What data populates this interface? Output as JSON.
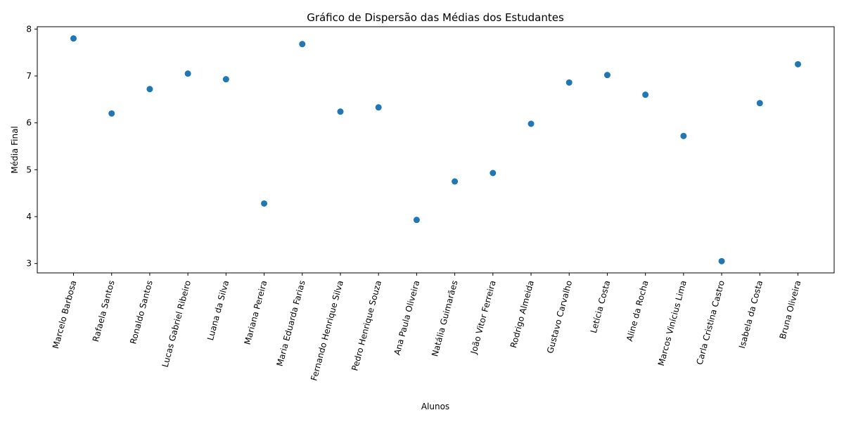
{
  "chart_data": {
    "type": "scatter",
    "title": "Gráfico de Dispersão das Médias dos Estudantes",
    "xlabel": "Alunos",
    "ylabel": "Média Final",
    "ylim": [
      2.8,
      8.05
    ],
    "yticks": [
      "3",
      "4",
      "5",
      "6",
      "7",
      "8"
    ],
    "grid": false,
    "marker_color": "#1f77b4",
    "categories": [
      "Marcelo Barbosa",
      "Rafaela Santos",
      "Ronaldo Santos",
      "Lucas Gabriel Ribeiro",
      "Luana da Silva",
      "Mariana Pereira",
      "Maria Eduarda Farias",
      "Fernando Henrique Silva",
      "Pedro Henrique Souza",
      "Ana Paula Oliveira",
      "Natália Guimarães",
      "João Vitor Ferreira",
      "Rodrigo Almeida",
      "Gustavo Carvalho",
      "Letícia Costa",
      "Aline da Rocha",
      "Marcos Vinícius Lima",
      "Carla Cristina Castro",
      "Isabela da Costa",
      "Bruna Oliveira"
    ],
    "values": [
      7.8,
      6.2,
      6.72,
      7.05,
      6.93,
      4.28,
      7.68,
      6.24,
      6.33,
      3.93,
      4.75,
      4.93,
      5.98,
      6.86,
      7.02,
      6.6,
      5.72,
      3.05,
      6.42,
      7.25
    ]
  }
}
